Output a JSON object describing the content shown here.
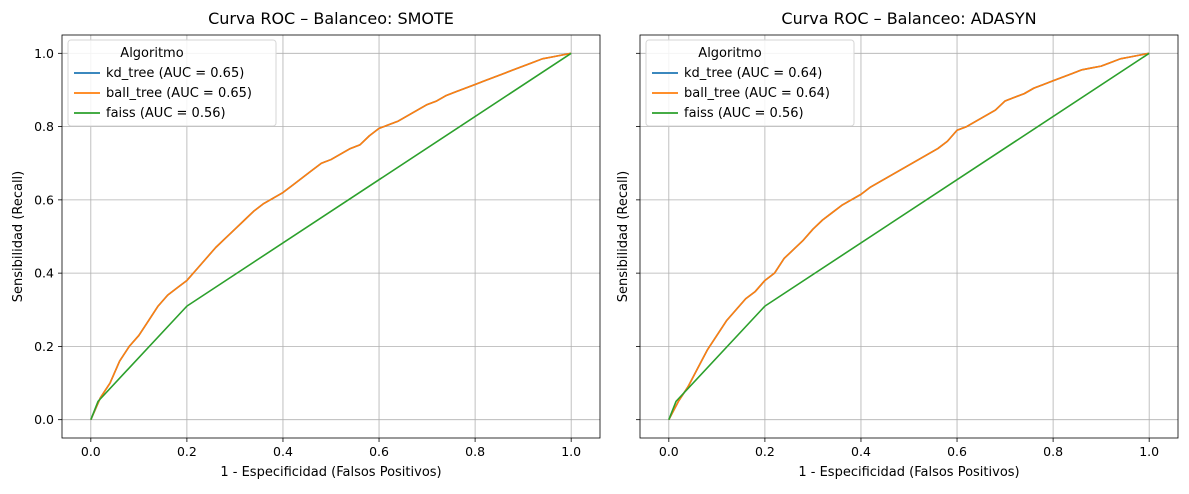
{
  "chart_data": [
    {
      "type": "line",
      "title": "Curva ROC – Balanceo: SMOTE",
      "xlabel": "1 - Especificidad (Falsos Positivos)",
      "ylabel": "Sensibilidad (Recall)",
      "xlim": [
        -0.06,
        1.06
      ],
      "ylim": [
        -0.05,
        1.05
      ],
      "xticks": [
        "0.0",
        "0.2",
        "0.4",
        "0.6",
        "0.8",
        "1.0"
      ],
      "yticks": [
        "0.0",
        "0.2",
        "0.4",
        "0.6",
        "0.8",
        "1.0"
      ],
      "grid": true,
      "legend": {
        "title": "Algoritmo",
        "placement": "top-left"
      },
      "series": [
        {
          "name": "kd_tree (AUC = 0.65)",
          "color": "#1f77b4",
          "points": [
            [
              0,
              0
            ],
            [
              0.02,
              0.06
            ],
            [
              0.04,
              0.1
            ],
            [
              0.06,
              0.16
            ],
            [
              0.08,
              0.2
            ],
            [
              0.1,
              0.23
            ],
            [
              0.12,
              0.27
            ],
            [
              0.14,
              0.31
            ],
            [
              0.16,
              0.34
            ],
            [
              0.18,
              0.36
            ],
            [
              0.2,
              0.38
            ],
            [
              0.22,
              0.41
            ],
            [
              0.24,
              0.44
            ],
            [
              0.26,
              0.47
            ],
            [
              0.28,
              0.495
            ],
            [
              0.3,
              0.52
            ],
            [
              0.32,
              0.545
            ],
            [
              0.34,
              0.57
            ],
            [
              0.36,
              0.59
            ],
            [
              0.38,
              0.605
            ],
            [
              0.4,
              0.62
            ],
            [
              0.42,
              0.64
            ],
            [
              0.44,
              0.66
            ],
            [
              0.46,
              0.68
            ],
            [
              0.48,
              0.7
            ],
            [
              0.5,
              0.71
            ],
            [
              0.52,
              0.725
            ],
            [
              0.54,
              0.74
            ],
            [
              0.56,
              0.75
            ],
            [
              0.58,
              0.775
            ],
            [
              0.6,
              0.795
            ],
            [
              0.62,
              0.805
            ],
            [
              0.64,
              0.815
            ],
            [
              0.66,
              0.83
            ],
            [
              0.68,
              0.845
            ],
            [
              0.7,
              0.86
            ],
            [
              0.72,
              0.87
            ],
            [
              0.74,
              0.885
            ],
            [
              0.76,
              0.895
            ],
            [
              0.78,
              0.905
            ],
            [
              0.8,
              0.915
            ],
            [
              0.82,
              0.925
            ],
            [
              0.84,
              0.935
            ],
            [
              0.86,
              0.945
            ],
            [
              0.88,
              0.955
            ],
            [
              0.9,
              0.965
            ],
            [
              0.92,
              0.975
            ],
            [
              0.94,
              0.985
            ],
            [
              0.96,
              0.99
            ],
            [
              0.98,
              0.995
            ],
            [
              1.0,
              1.0
            ]
          ]
        },
        {
          "name": "ball_tree (AUC = 0.65)",
          "color": "#ff7f0e",
          "points": [
            [
              0,
              0
            ],
            [
              0.02,
              0.06
            ],
            [
              0.04,
              0.1
            ],
            [
              0.06,
              0.16
            ],
            [
              0.08,
              0.2
            ],
            [
              0.1,
              0.23
            ],
            [
              0.12,
              0.27
            ],
            [
              0.14,
              0.31
            ],
            [
              0.16,
              0.34
            ],
            [
              0.18,
              0.36
            ],
            [
              0.2,
              0.38
            ],
            [
              0.22,
              0.41
            ],
            [
              0.24,
              0.44
            ],
            [
              0.26,
              0.47
            ],
            [
              0.28,
              0.495
            ],
            [
              0.3,
              0.52
            ],
            [
              0.32,
              0.545
            ],
            [
              0.34,
              0.57
            ],
            [
              0.36,
              0.59
            ],
            [
              0.38,
              0.605
            ],
            [
              0.4,
              0.62
            ],
            [
              0.42,
              0.64
            ],
            [
              0.44,
              0.66
            ],
            [
              0.46,
              0.68
            ],
            [
              0.48,
              0.7
            ],
            [
              0.5,
              0.71
            ],
            [
              0.52,
              0.725
            ],
            [
              0.54,
              0.74
            ],
            [
              0.56,
              0.75
            ],
            [
              0.58,
              0.775
            ],
            [
              0.6,
              0.795
            ],
            [
              0.62,
              0.805
            ],
            [
              0.64,
              0.815
            ],
            [
              0.66,
              0.83
            ],
            [
              0.68,
              0.845
            ],
            [
              0.7,
              0.86
            ],
            [
              0.72,
              0.87
            ],
            [
              0.74,
              0.885
            ],
            [
              0.76,
              0.895
            ],
            [
              0.78,
              0.905
            ],
            [
              0.8,
              0.915
            ],
            [
              0.82,
              0.925
            ],
            [
              0.84,
              0.935
            ],
            [
              0.86,
              0.945
            ],
            [
              0.88,
              0.955
            ],
            [
              0.9,
              0.965
            ],
            [
              0.92,
              0.975
            ],
            [
              0.94,
              0.985
            ],
            [
              0.96,
              0.99
            ],
            [
              0.98,
              0.995
            ],
            [
              1.0,
              1.0
            ]
          ]
        },
        {
          "name": "faiss (AUC = 0.56)",
          "color": "#2ca02c",
          "points": [
            [
              0,
              0
            ],
            [
              0.015,
              0.05
            ],
            [
              0.2,
              0.31
            ],
            [
              1.0,
              1.0
            ]
          ]
        }
      ]
    },
    {
      "type": "line",
      "title": "Curva ROC – Balanceo: ADASYN",
      "xlabel": "1 - Especificidad (Falsos Positivos)",
      "ylabel": "Sensibilidad (Recall)",
      "xlim": [
        -0.06,
        1.06
      ],
      "ylim": [
        -0.05,
        1.05
      ],
      "xticks": [
        "0.0",
        "0.2",
        "0.4",
        "0.6",
        "0.8",
        "1.0"
      ],
      "yticks": [
        "0.0",
        "0.2",
        "0.4",
        "0.6",
        "0.8",
        "1.0"
      ],
      "grid": true,
      "legend": {
        "title": "Algoritmo",
        "placement": "top-left"
      },
      "series": [
        {
          "name": "kd_tree (AUC = 0.64)",
          "color": "#1f77b4",
          "points": [
            [
              0,
              0
            ],
            [
              0.02,
              0.05
            ],
            [
              0.04,
              0.09
            ],
            [
              0.06,
              0.14
            ],
            [
              0.08,
              0.19
            ],
            [
              0.1,
              0.23
            ],
            [
              0.12,
              0.27
            ],
            [
              0.14,
              0.3
            ],
            [
              0.16,
              0.33
            ],
            [
              0.18,
              0.35
            ],
            [
              0.2,
              0.38
            ],
            [
              0.22,
              0.4
            ],
            [
              0.24,
              0.44
            ],
            [
              0.26,
              0.465
            ],
            [
              0.28,
              0.49
            ],
            [
              0.3,
              0.52
            ],
            [
              0.32,
              0.545
            ],
            [
              0.34,
              0.565
            ],
            [
              0.36,
              0.585
            ],
            [
              0.38,
              0.6
            ],
            [
              0.4,
              0.615
            ],
            [
              0.42,
              0.635
            ],
            [
              0.44,
              0.65
            ],
            [
              0.46,
              0.665
            ],
            [
              0.48,
              0.68
            ],
            [
              0.5,
              0.695
            ],
            [
              0.52,
              0.71
            ],
            [
              0.54,
              0.725
            ],
            [
              0.56,
              0.74
            ],
            [
              0.58,
              0.76
            ],
            [
              0.6,
              0.79
            ],
            [
              0.62,
              0.8
            ],
            [
              0.64,
              0.815
            ],
            [
              0.66,
              0.83
            ],
            [
              0.68,
              0.845
            ],
            [
              0.7,
              0.87
            ],
            [
              0.72,
              0.88
            ],
            [
              0.74,
              0.89
            ],
            [
              0.76,
              0.905
            ],
            [
              0.78,
              0.915
            ],
            [
              0.8,
              0.925
            ],
            [
              0.82,
              0.935
            ],
            [
              0.84,
              0.945
            ],
            [
              0.86,
              0.955
            ],
            [
              0.88,
              0.96
            ],
            [
              0.9,
              0.965
            ],
            [
              0.92,
              0.975
            ],
            [
              0.94,
              0.985
            ],
            [
              0.96,
              0.99
            ],
            [
              0.98,
              0.995
            ],
            [
              1.0,
              1.0
            ]
          ]
        },
        {
          "name": "ball_tree (AUC = 0.64)",
          "color": "#ff7f0e",
          "points": [
            [
              0,
              0
            ],
            [
              0.02,
              0.05
            ],
            [
              0.04,
              0.09
            ],
            [
              0.06,
              0.14
            ],
            [
              0.08,
              0.19
            ],
            [
              0.1,
              0.23
            ],
            [
              0.12,
              0.27
            ],
            [
              0.14,
              0.3
            ],
            [
              0.16,
              0.33
            ],
            [
              0.18,
              0.35
            ],
            [
              0.2,
              0.38
            ],
            [
              0.22,
              0.4
            ],
            [
              0.24,
              0.44
            ],
            [
              0.26,
              0.465
            ],
            [
              0.28,
              0.49
            ],
            [
              0.3,
              0.52
            ],
            [
              0.32,
              0.545
            ],
            [
              0.34,
              0.565
            ],
            [
              0.36,
              0.585
            ],
            [
              0.38,
              0.6
            ],
            [
              0.4,
              0.615
            ],
            [
              0.42,
              0.635
            ],
            [
              0.44,
              0.65
            ],
            [
              0.46,
              0.665
            ],
            [
              0.48,
              0.68
            ],
            [
              0.5,
              0.695
            ],
            [
              0.52,
              0.71
            ],
            [
              0.54,
              0.725
            ],
            [
              0.56,
              0.74
            ],
            [
              0.58,
              0.76
            ],
            [
              0.6,
              0.79
            ],
            [
              0.62,
              0.8
            ],
            [
              0.64,
              0.815
            ],
            [
              0.66,
              0.83
            ],
            [
              0.68,
              0.845
            ],
            [
              0.7,
              0.87
            ],
            [
              0.72,
              0.88
            ],
            [
              0.74,
              0.89
            ],
            [
              0.76,
              0.905
            ],
            [
              0.78,
              0.915
            ],
            [
              0.8,
              0.925
            ],
            [
              0.82,
              0.935
            ],
            [
              0.84,
              0.945
            ],
            [
              0.86,
              0.955
            ],
            [
              0.88,
              0.96
            ],
            [
              0.9,
              0.965
            ],
            [
              0.92,
              0.975
            ],
            [
              0.94,
              0.985
            ],
            [
              0.96,
              0.99
            ],
            [
              0.98,
              0.995
            ],
            [
              1.0,
              1.0
            ]
          ]
        },
        {
          "name": "faiss (AUC = 0.56)",
          "color": "#2ca02c",
          "points": [
            [
              0,
              0
            ],
            [
              0.015,
              0.05
            ],
            [
              0.2,
              0.31
            ],
            [
              1.0,
              1.0
            ]
          ]
        }
      ]
    }
  ]
}
